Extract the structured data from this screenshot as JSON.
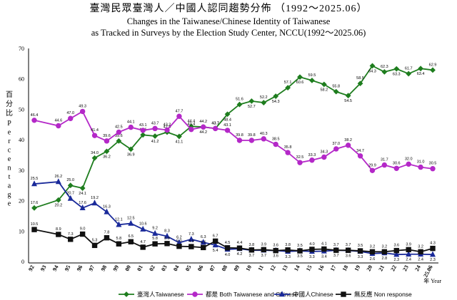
{
  "chart_data": {
    "type": "line",
    "title_zh": "臺灣民眾臺灣人／中國人認同趨勢分佈 （1992～2025.06）",
    "title_en_1": "Changes in the Taiwanese/Chinese Identity of Taiwanese",
    "title_en_2": "as Tracked in Surveys by the Election Study Center, NCCU(1992～2025.06)",
    "ylabel_zh": "百分比",
    "ylabel_en": "Percentage",
    "xlabel": "年 Year",
    "ylim": [
      0,
      70
    ],
    "yticks": [
      0,
      10,
      20,
      30,
      40,
      50,
      60,
      70
    ],
    "categories": [
      "92",
      "93",
      "94",
      "95",
      "96",
      "97",
      "98",
      "99",
      "00",
      "01",
      "02",
      "03",
      "04",
      "05",
      "06",
      "07",
      "08",
      "09",
      "10",
      "11",
      "12",
      "13",
      "14",
      "15",
      "16",
      "17",
      "18",
      "19",
      "20",
      "21",
      "22",
      "23",
      "24",
      "25.06"
    ],
    "series": [
      {
        "name": "臺灣人Taiwanese",
        "color": "#1e7d1e",
        "marker": "diamond",
        "points": [
          [
            0,
            17.6
          ],
          [
            2,
            20.2
          ],
          [
            3,
            25.0
          ],
          [
            4,
            24.1
          ],
          [
            5,
            34.0
          ],
          [
            6,
            36.2
          ],
          [
            7,
            39.6
          ],
          [
            8,
            36.9
          ],
          [
            9,
            41.6
          ],
          [
            10,
            41.2
          ],
          [
            11,
            42.5
          ],
          [
            12,
            41.1
          ],
          [
            13,
            44.4
          ],
          [
            14,
            44.2
          ],
          [
            15,
            43.7
          ],
          [
            16,
            48.4
          ],
          [
            17,
            51.6
          ],
          [
            18,
            52.7
          ],
          [
            19,
            52.2
          ],
          [
            20,
            54.3
          ],
          [
            21,
            57.1
          ],
          [
            22,
            60.6
          ],
          [
            23,
            59.5
          ],
          [
            24,
            58.2
          ],
          [
            25,
            55.8
          ],
          [
            26,
            54.5
          ],
          [
            27,
            58.5
          ],
          [
            28,
            64.3
          ],
          [
            29,
            62.3
          ],
          [
            30,
            63.3
          ],
          [
            31,
            61.7
          ],
          [
            32,
            63.4
          ],
          [
            33,
            62.9
          ]
        ]
      },
      {
        "name": "都是 Both Taiwanese and Chinese",
        "color": "#b428c8",
        "marker": "circle",
        "points": [
          [
            0,
            46.4
          ],
          [
            2,
            44.6
          ],
          [
            3,
            47.0
          ],
          [
            4,
            49.3
          ],
          [
            5,
            41.4
          ],
          [
            6,
            39.6
          ],
          [
            7,
            42.5
          ],
          [
            8,
            44.1
          ],
          [
            9,
            43.1
          ],
          [
            10,
            43.7
          ],
          [
            11,
            43.2
          ],
          [
            12,
            47.7
          ],
          [
            13,
            43.4
          ],
          [
            14,
            44.2
          ],
          [
            15,
            43.7
          ],
          [
            16,
            43.1
          ],
          [
            17,
            39.8
          ],
          [
            18,
            39.8
          ],
          [
            19,
            40.3
          ],
          [
            20,
            38.5
          ],
          [
            21,
            35.8
          ],
          [
            22,
            32.5
          ],
          [
            23,
            33.3
          ],
          [
            24,
            34.3
          ],
          [
            25,
            37.0
          ],
          [
            26,
            38.2
          ],
          [
            27,
            34.7
          ],
          [
            28,
            29.9
          ],
          [
            29,
            31.7
          ],
          [
            30,
            30.6
          ],
          [
            31,
            32.0
          ],
          [
            32,
            31.0
          ],
          [
            33,
            30.5
          ]
        ]
      },
      {
        "name": "中國人Chinese",
        "color": "#1a2a9a",
        "marker": "triangle",
        "points": [
          [
            0,
            25.5
          ],
          [
            2,
            26.2
          ],
          [
            3,
            20.7
          ],
          [
            4,
            17.6
          ],
          [
            5,
            19.2
          ],
          [
            6,
            16.3
          ],
          [
            7,
            12.1
          ],
          [
            8,
            12.5
          ],
          [
            9,
            10.6
          ],
          [
            10,
            9.2
          ],
          [
            11,
            8.3
          ],
          [
            12,
            6.2
          ],
          [
            13,
            7.3
          ],
          [
            14,
            6.3
          ],
          [
            15,
            5.4
          ],
          [
            16,
            4.0
          ],
          [
            17,
            4.2
          ],
          [
            18,
            3.7
          ],
          [
            19,
            3.7
          ],
          [
            20,
            3.6
          ],
          [
            21,
            3.3
          ],
          [
            22,
            3.5
          ],
          [
            23,
            3.3
          ],
          [
            24,
            3.4
          ],
          [
            25,
            3.7
          ],
          [
            26,
            3.6
          ],
          [
            27,
            3.3
          ],
          [
            28,
            2.6
          ],
          [
            29,
            2.8
          ],
          [
            30,
            2.3
          ],
          [
            31,
            2.4
          ],
          [
            32,
            2.4
          ],
          [
            33,
            2.3
          ]
        ]
      },
      {
        "name": "無反應 Non response",
        "color": "#111111",
        "marker": "square",
        "points": [
          [
            0,
            10.5
          ],
          [
            2,
            8.9
          ],
          [
            3,
            7.3
          ],
          [
            4,
            9.0
          ],
          [
            5,
            5.3
          ],
          [
            6,
            7.8
          ],
          [
            7,
            5.8
          ],
          [
            8,
            6.5
          ],
          [
            9,
            4.7
          ],
          [
            10,
            5.8
          ],
          [
            11,
            5.9
          ],
          [
            12,
            5.0
          ],
          [
            13,
            4.9
          ],
          [
            14,
            4.6
          ],
          [
            15,
            6.7
          ],
          [
            16,
            4.5
          ],
          [
            17,
            4.4
          ],
          [
            18,
            3.8
          ],
          [
            19,
            3.9
          ],
          [
            20,
            3.6
          ],
          [
            21,
            3.8
          ],
          [
            22,
            3.5
          ],
          [
            23,
            4.0
          ],
          [
            24,
            4.1
          ],
          [
            25,
            3.7
          ],
          [
            26,
            3.7
          ],
          [
            27,
            3.5
          ],
          [
            28,
            3.2
          ],
          [
            29,
            3.2
          ],
          [
            30,
            3.6
          ],
          [
            31,
            3.9
          ],
          [
            32,
            3.2
          ],
          [
            33,
            4.3
          ]
        ]
      }
    ],
    "legend_position": "bottom",
    "grid": false
  }
}
